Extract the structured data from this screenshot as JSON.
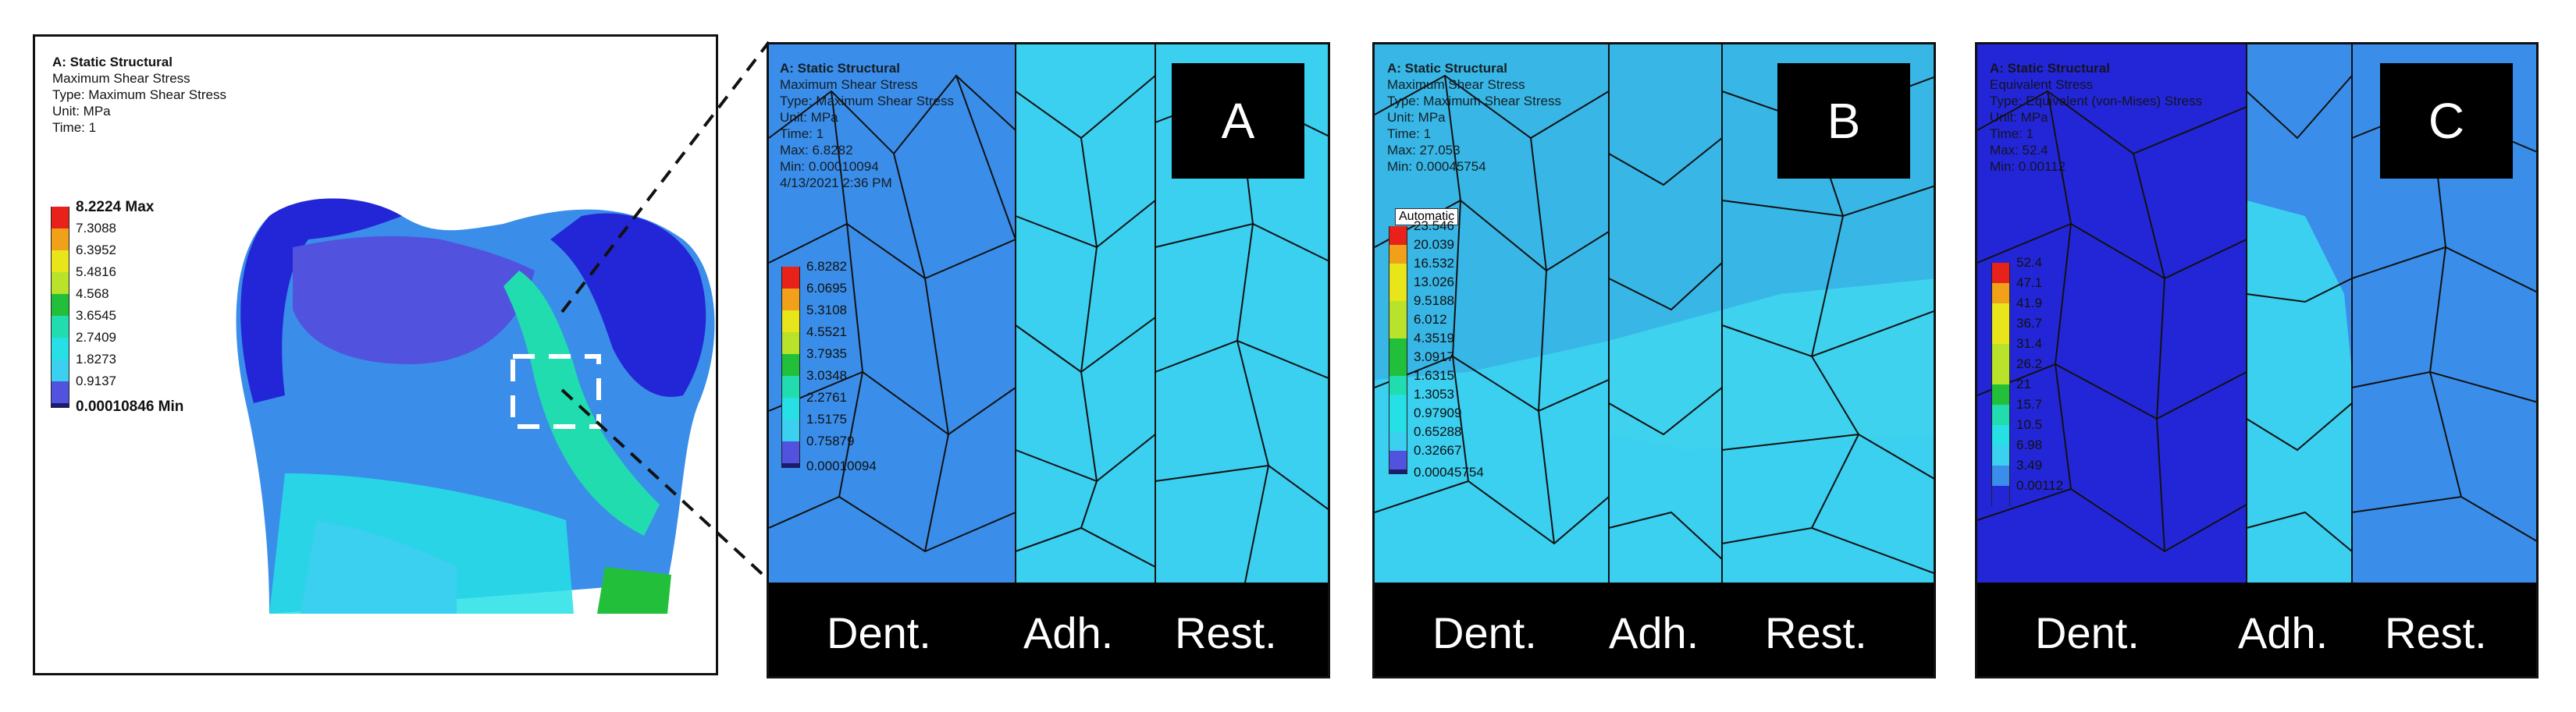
{
  "overview": {
    "info": {
      "title": "A: Static Structural",
      "line1": "Maximum Shear Stress",
      "line2": "Type: Maximum Shear Stress",
      "line3": "Unit: MPa",
      "line4": "Time: 1"
    },
    "legend": [
      "8.2224 Max",
      "7.3088",
      "6.3952",
      "5.4816",
      "4.568",
      "3.6545",
      "2.7409",
      "1.8273",
      "0.9137",
      "0.00010846 Min"
    ]
  },
  "panels": [
    {
      "letter": "A",
      "info": {
        "title": "A: Static Structural",
        "line1": "Maximum Shear Stress",
        "line2": "Type: Maximum Shear Stress",
        "line3": "Unit: MPa",
        "line4": "Time: 1",
        "line5": "Max: 6.8282",
        "line6": "Min: 0.00010094",
        "line7": "4/13/2021 2:36 PM"
      },
      "legend": [
        "6.8282",
        "6.0695",
        "5.3108",
        "4.5521",
        "3.7935",
        "3.0348",
        "2.2761",
        "1.5175",
        "0.75879",
        "0.00010094"
      ],
      "labels": [
        "Dent.",
        "Adh.",
        "Rest."
      ]
    },
    {
      "letter": "B",
      "info": {
        "title": "A: Static Structural",
        "line1": "Maximum Shear Stress",
        "line2": "Type: Maximum Shear Stress",
        "line3": "Unit: MPa",
        "line4": "Time: 1",
        "line5": "Max: 27.053",
        "line6": "Min: 0.00045754"
      },
      "tag": "Automatic",
      "legend": [
        "23.546",
        "20.039",
        "16.532",
        "13.026",
        "9.5188",
        "6.012",
        "4.3519",
        "3.0917",
        "1.6315",
        "1.3053",
        "0.97909",
        "0.65288",
        "0.32667",
        "0.00045754"
      ],
      "labels": [
        "Dent.",
        "Adh.",
        "Rest."
      ]
    },
    {
      "letter": "C",
      "info": {
        "title": "A: Static Structural",
        "line1": "Equivalent Stress",
        "line2": "Type: Equivalent (von-Mises) Stress",
        "line3": "Unit: MPa",
        "line4": "Time: 1",
        "line5": "Max: 52.4",
        "line6": "Min: 0.00112"
      },
      "legend": [
        "52.4",
        "47.1",
        "41.9",
        "36.7",
        "31.4",
        "26.2",
        "21",
        "15.7",
        "10.5",
        "6.98",
        "3.49",
        "0.00112"
      ],
      "labels": [
        "Dent.",
        "Adh.",
        "Rest."
      ]
    }
  ],
  "colors": {
    "red": "#e8221b",
    "orange": "#f1a01a",
    "yellow": "#e8e61a",
    "yellowgreen": "#b9e22a",
    "green": "#22c03a",
    "teal": "#21dcae",
    "cyan": "#26e0e5",
    "lightcyan": "#3bcff0",
    "blue": "#3a8ee9",
    "violet": "#5153df",
    "navy": "#2326d6"
  }
}
